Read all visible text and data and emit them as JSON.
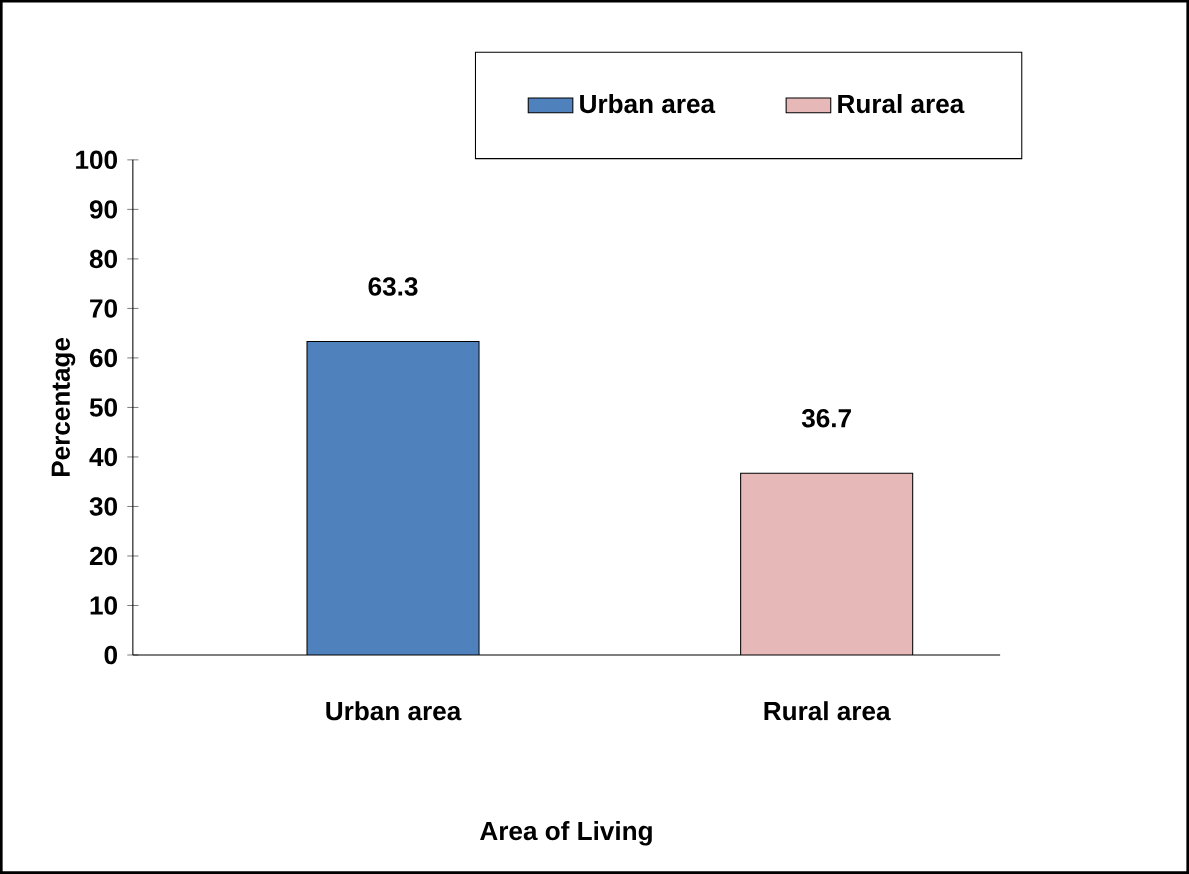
{
  "chart_data": {
    "type": "bar",
    "xlabel": "Area of Living",
    "ylabel": "Percentage",
    "categories": [
      "Urban area",
      "Rural area"
    ],
    "series": [
      {
        "name": "Urban area",
        "color": "#4f81bd",
        "values": [
          63.3,
          null
        ]
      },
      {
        "name": "Rural area",
        "color": "#e6b9b8",
        "values": [
          null,
          36.7
        ]
      }
    ],
    "ylim": [
      0,
      100
    ],
    "yticks": [
      0,
      10,
      20,
      30,
      40,
      50,
      60,
      70,
      80,
      90,
      100
    ],
    "data_labels": true,
    "legend": "top",
    "grid": false
  }
}
